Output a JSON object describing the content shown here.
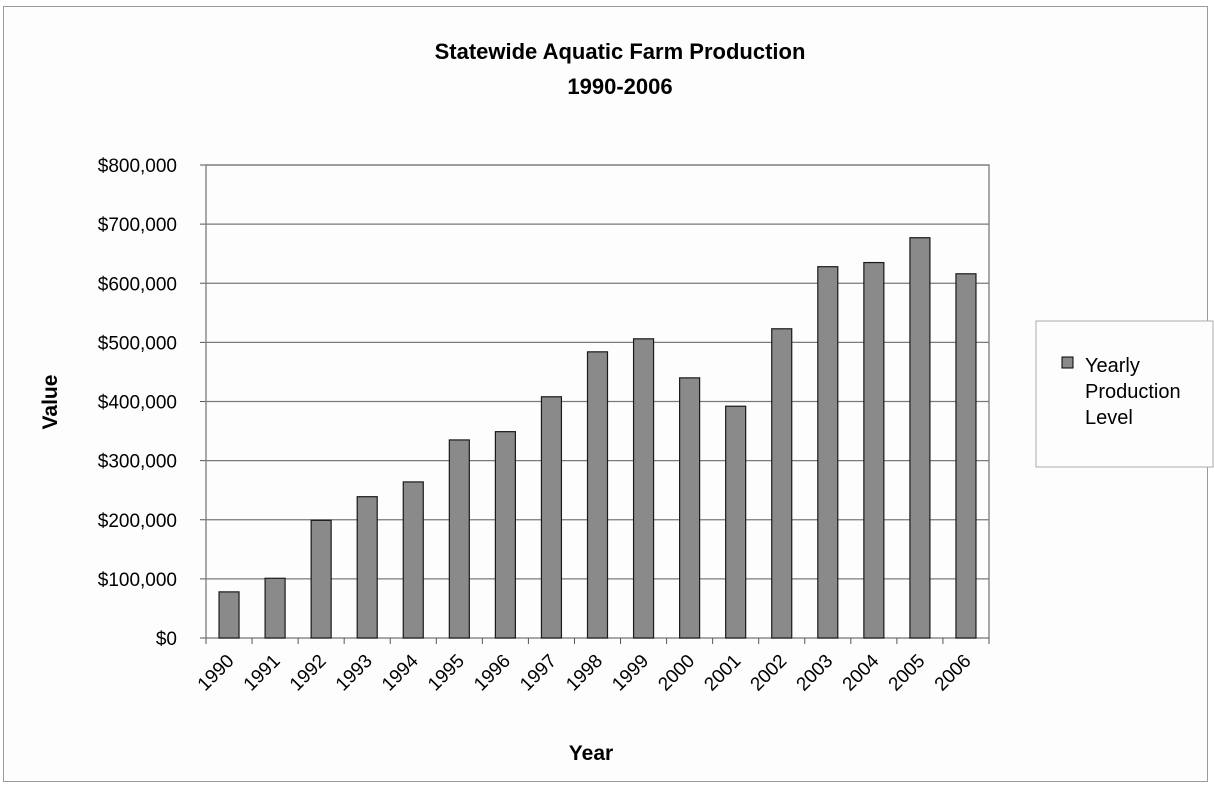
{
  "chart_data": {
    "type": "bar",
    "title": "Statewide Aquatic Farm Production",
    "subtitle": "1990-2006",
    "xlabel": "Year",
    "ylabel": "Value",
    "ylim": [
      0,
      800000
    ],
    "y_ticks": [
      0,
      100000,
      200000,
      300000,
      400000,
      500000,
      600000,
      700000,
      800000
    ],
    "y_tick_labels": [
      "$0",
      "$100,000",
      "$200,000",
      "$300,000",
      "$400,000",
      "$500,000",
      "$600,000",
      "$700,000",
      "$800,000"
    ],
    "categories": [
      "1990",
      "1991",
      "1992",
      "1993",
      "1994",
      "1995",
      "1996",
      "1997",
      "1998",
      "1999",
      "2000",
      "2001",
      "2002",
      "2003",
      "2004",
      "2005",
      "2006"
    ],
    "series": [
      {
        "name": "Yearly Production Level",
        "color": "#8a8a8a",
        "values": [
          78000,
          101000,
          199000,
          239000,
          264000,
          335000,
          349000,
          408000,
          484000,
          506000,
          440000,
          392000,
          523000,
          628000,
          635000,
          677000,
          616000
        ]
      }
    ],
    "grid": true,
    "legend": "right"
  }
}
